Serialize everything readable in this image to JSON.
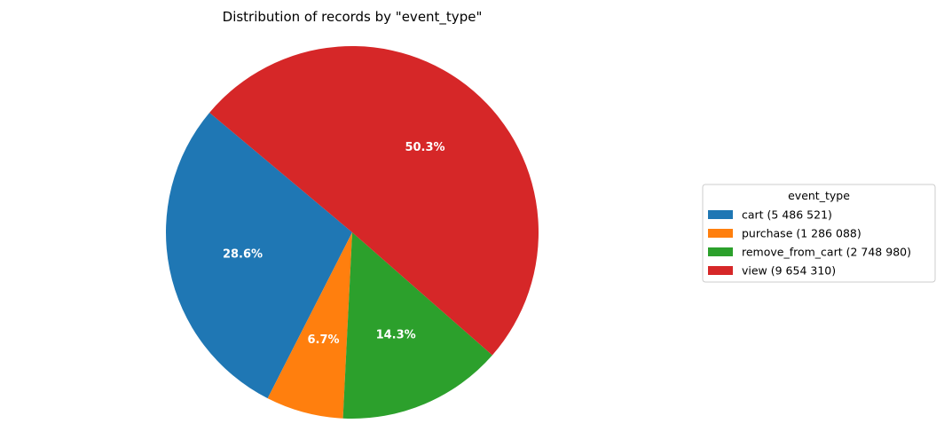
{
  "chart_data": {
    "type": "pie",
    "title": "Distribution of records by \"event_type\"",
    "categories": [
      "cart",
      "purchase",
      "remove_from_cart",
      "view"
    ],
    "values": [
      5486521,
      1286088,
      2748980,
      9654310
    ],
    "percent_labels": [
      "28.6%",
      "6.7%",
      "14.3%",
      "50.3%"
    ],
    "colors": [
      "#1f77b4",
      "#ff7f0e",
      "#2ca02c",
      "#d62728"
    ],
    "start_angle_deg": 140,
    "direction": "counterclockwise",
    "legend": {
      "title": "event_type",
      "placement": "center-right",
      "entries": [
        "cart (5 486 521)",
        "purchase (1 286 088)",
        "remove_from_cart (2 748 980)",
        "view (9 654 310)"
      ]
    }
  }
}
